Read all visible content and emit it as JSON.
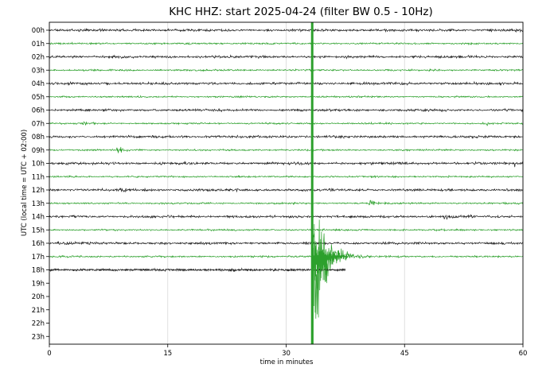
{
  "chart_data": {
    "type": "line",
    "title": "KHC HHZ: start 2025-04-24 (filter BW 0.5 - 10Hz)",
    "xlabel": "time in minutes",
    "ylabel": "UTC (local time = UTC + 02:00)",
    "xlim": [
      0,
      60
    ],
    "xticks": [
      "0",
      "15",
      "30",
      "45",
      "60"
    ],
    "xtick_values": [
      0,
      15,
      30,
      45,
      60
    ],
    "grid": "vertical",
    "row_labels": [
      "00h",
      "01h",
      "02h",
      "03h",
      "04h",
      "05h",
      "06h",
      "07h",
      "08h",
      "09h",
      "10h",
      "11h",
      "12h",
      "13h",
      "14h",
      "15h",
      "16h",
      "17h",
      "18h",
      "19h",
      "20h",
      "21h",
      "22h",
      "23h"
    ],
    "trace_colors": [
      "#202020",
      "#2ca02c"
    ],
    "recorded_hours": 19,
    "last_trace_end_minute": 37.5,
    "events": [
      {
        "hour": 17,
        "minute": 33.3,
        "type": "major earthquake",
        "peak_amplitude_rows": 5.5,
        "coda_minutes": 4.5
      },
      {
        "hour": 9,
        "minute": 8.8,
        "type": "local event",
        "peak_amplitude_rows": 0.35
      },
      {
        "hour": 7,
        "minute": 4.5,
        "type": "noise burst",
        "peak_amplitude_rows": 0.15
      },
      {
        "hour": 13,
        "minute": 40.8,
        "type": "local event",
        "peak_amplitude_rows": 0.3
      },
      {
        "hour": 12,
        "minute": 9.3,
        "type": "local event",
        "peak_amplitude_rows": 0.2
      },
      {
        "hour": 14,
        "minute": 50.3,
        "type": "local event",
        "peak_amplitude_rows": 0.15
      },
      {
        "hour": 16,
        "minute": 1.3,
        "type": "local event",
        "peak_amplitude_rows": 0.2
      },
      {
        "hour": 7,
        "minute": 55.5,
        "type": "spike",
        "peak_amplitude_rows": 0.25
      },
      {
        "hour": 10,
        "minute": 59.0,
        "type": "spike",
        "peak_amplitude_rows": 0.2
      }
    ]
  }
}
